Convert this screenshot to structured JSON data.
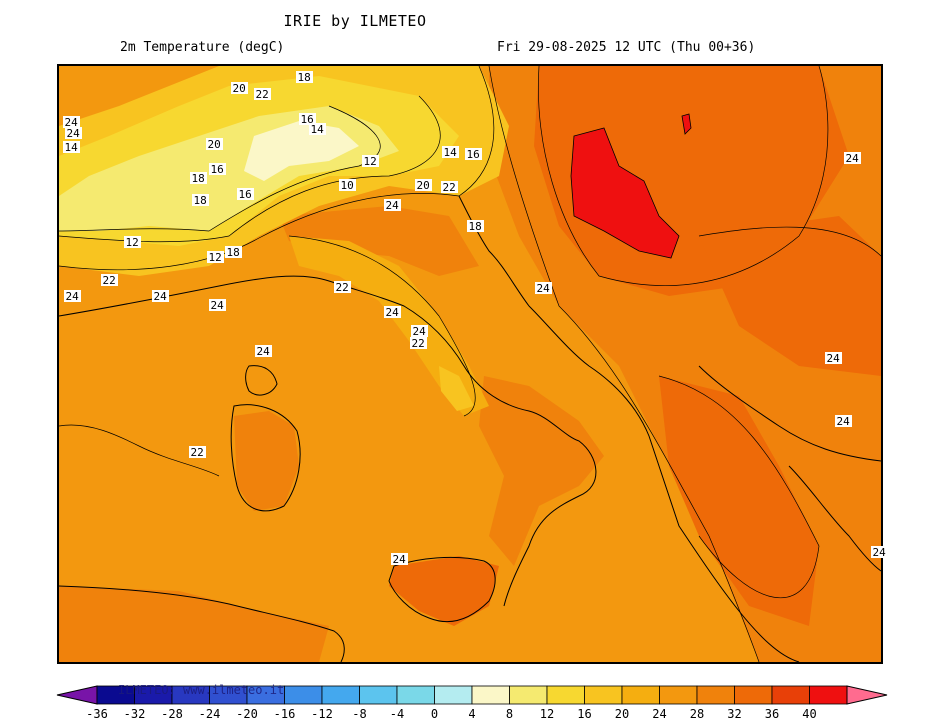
{
  "header": {
    "title": "IRIE by ILMETEO",
    "variable": "2m Temperature (degC)",
    "valid_time": "Fri 29-08-2025 12 UTC (Thu 00+36)"
  },
  "map": {
    "contour_labels": [
      "20",
      "22",
      "18",
      "20",
      "16",
      "14",
      "16",
      "18",
      "12",
      "10",
      "16",
      "18",
      "12",
      "14",
      "16",
      "20",
      "24",
      "18",
      "22",
      "12",
      "18",
      "22",
      "24",
      "24",
      "24",
      "22",
      "22",
      "24",
      "24",
      "24",
      "22",
      "24",
      "24",
      "24",
      "24",
      "24",
      "24",
      "24",
      "24",
      "14"
    ]
  },
  "colorbar": {
    "watermark": "ILMETEO: www.ilmeteo.it",
    "tick_labels": [
      "-36",
      "-32",
      "-28",
      "-24",
      "-20",
      "-16",
      "-12",
      "-8",
      "-4",
      "0",
      "4",
      "8",
      "12",
      "16",
      "20",
      "24",
      "28",
      "32",
      "36",
      "40"
    ],
    "colors": [
      "#7814a8",
      "#0a0a90",
      "#1a1aaa",
      "#2838c0",
      "#3050d0",
      "#3a6ee0",
      "#3c8ee8",
      "#44a8ee",
      "#5cc4ee",
      "#7ad8e8",
      "#b4ecf0",
      "#fbf7c8",
      "#f5ea70",
      "#f7d830",
      "#f8c420",
      "#f5ae10",
      "#f3980f",
      "#f0820c",
      "#ee6a08",
      "#e84008",
      "#ef1010",
      "#ff6b8f"
    ]
  }
}
